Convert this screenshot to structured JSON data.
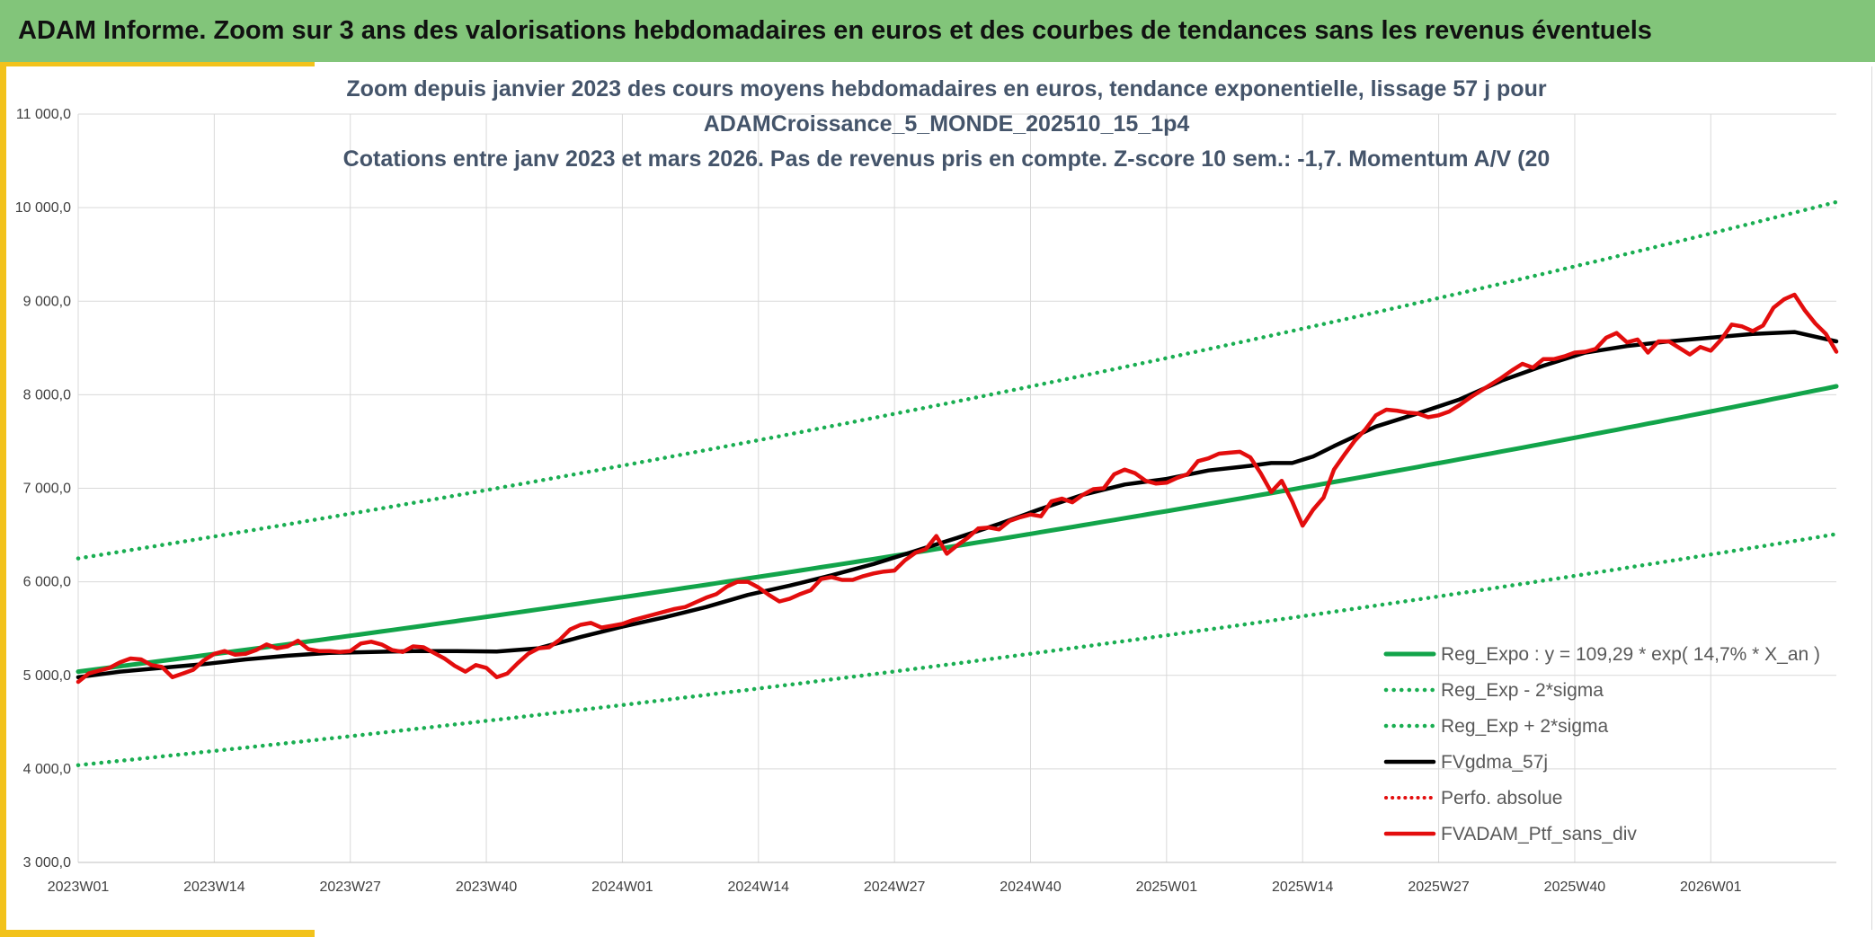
{
  "header": {
    "title": "ADAM Informe. Zoom sur 3 ans des valorisations hebdomadaires en euros et des courbes de tendances sans les revenus éventuels"
  },
  "colors": {
    "banner": "#82c57a",
    "accent_gold": "#f2c21b",
    "reg_expo": "#12a44a",
    "sigma_lines": "#1aae52",
    "fvgdma": "#000000",
    "perfo": "#e30d0d",
    "ptf": "#e30d0d",
    "grid": "#d9d9d9"
  },
  "chart_data": {
    "type": "line",
    "title_lines": [
      "Zoom depuis janvier 2023 des cours moyens hebdomadaires en euros, tendance exponentielle, lissage 57 j pour",
      "ADAMCroissance_5_MONDE_202510_15_1p4",
      "Cotations entre janv 2023 et mars 2026. Pas de revenus pris en compte. Z-score 10 sem.: -1,7. Momentum A/V (20"
    ],
    "x_tick_labels": [
      "2023W01",
      "2023W14",
      "2023W27",
      "2023W40",
      "2024W01",
      "2024W14",
      "2024W27",
      "2024W40",
      "2025W01",
      "2025W14",
      "2025W27",
      "2025W40",
      "2026W01"
    ],
    "x_tick_weeks": [
      0,
      13,
      26,
      39,
      52,
      65,
      78,
      91,
      104,
      117,
      130,
      143,
      156
    ],
    "y_tick_labels": [
      "3 000,0",
      "4 000,0",
      "5 000,0",
      "6 000,0",
      "7 000,0",
      "8 000,0",
      "9 000,0",
      "10 000,0",
      "11 000,0"
    ],
    "ylim": [
      3000,
      11000
    ],
    "x_week_range": [
      0,
      168
    ],
    "grid": true,
    "legend_position": "bottom-right",
    "series": [
      {
        "name": "Reg_Expo : y = 109,29 * exp( 14,7% *  X_an )",
        "style": "solid",
        "x": [
          0,
          168
        ],
        "values": [
          5040,
          8090
        ],
        "exponential": true
      },
      {
        "name": "Reg_Exp - 2*sigma",
        "style": "dotted",
        "x": [
          0,
          168
        ],
        "values": [
          4040,
          6510
        ],
        "exponential": true
      },
      {
        "name": "Reg_Exp + 2*sigma",
        "style": "dotted",
        "x": [
          0,
          168
        ],
        "values": [
          6250,
          10060
        ],
        "exponential": true
      },
      {
        "name": "FVgdma_57j",
        "style": "solid",
        "x": [
          0,
          4,
          8,
          12,
          16,
          20,
          24,
          28,
          32,
          36,
          40,
          44,
          48,
          52,
          56,
          60,
          64,
          68,
          72,
          76,
          80,
          84,
          88,
          92,
          96,
          100,
          104,
          108,
          112,
          114,
          116,
          118,
          120,
          124,
          128,
          132,
          136,
          140,
          144,
          148,
          152,
          156,
          160,
          164,
          168
        ],
        "values": [
          4980,
          5040,
          5080,
          5120,
          5170,
          5210,
          5240,
          5250,
          5260,
          5260,
          5255,
          5290,
          5410,
          5520,
          5620,
          5730,
          5860,
          5960,
          6070,
          6190,
          6330,
          6470,
          6620,
          6780,
          6930,
          7040,
          7100,
          7190,
          7240,
          7270,
          7270,
          7340,
          7450,
          7660,
          7800,
          7950,
          8150,
          8310,
          8450,
          8520,
          8570,
          8610,
          8650,
          8670,
          8570
        ]
      },
      {
        "name": "Perfo. absolue",
        "style": "dotted",
        "x": [],
        "values": []
      },
      {
        "name": "FVADAM_Ptf_sans_div",
        "style": "solid",
        "x": [
          0,
          1,
          2,
          3,
          4,
          5,
          6,
          7,
          8,
          9,
          10,
          11,
          12,
          13,
          14,
          15,
          16,
          17,
          18,
          19,
          20,
          21,
          22,
          23,
          24,
          25,
          26,
          27,
          28,
          29,
          30,
          31,
          32,
          33,
          34,
          35,
          36,
          37,
          38,
          39,
          40,
          41,
          42,
          43,
          44,
          45,
          46,
          47,
          48,
          49,
          50,
          51,
          52,
          53,
          54,
          55,
          56,
          57,
          58,
          59,
          60,
          61,
          62,
          63,
          64,
          65,
          66,
          67,
          68,
          69,
          70,
          71,
          72,
          73,
          74,
          75,
          76,
          77,
          78,
          79,
          80,
          81,
          82,
          83,
          84,
          85,
          86,
          87,
          88,
          89,
          90,
          91,
          92,
          93,
          94,
          95,
          96,
          97,
          98,
          99,
          100,
          101,
          102,
          103,
          104,
          105,
          106,
          107,
          108,
          109,
          110,
          111,
          112,
          113,
          114,
          115,
          116,
          117,
          118,
          119,
          120,
          121,
          122,
          123,
          124,
          125,
          126,
          127,
          128,
          129,
          130,
          131,
          132,
          133,
          134,
          135,
          136,
          137,
          138,
          139,
          140,
          141,
          142,
          143,
          144,
          145,
          146,
          147,
          148,
          149,
          150,
          151,
          152,
          153,
          154,
          155,
          156,
          157,
          158,
          159,
          160,
          161,
          162,
          163,
          164,
          165,
          166,
          167,
          168
        ],
        "values": [
          4930,
          5020,
          5050,
          5080,
          5140,
          5180,
          5170,
          5110,
          5090,
          4980,
          5020,
          5060,
          5160,
          5230,
          5260,
          5220,
          5230,
          5270,
          5330,
          5290,
          5310,
          5370,
          5280,
          5260,
          5260,
          5250,
          5260,
          5340,
          5360,
          5330,
          5270,
          5250,
          5310,
          5300,
          5240,
          5180,
          5100,
          5040,
          5110,
          5080,
          4980,
          5020,
          5130,
          5230,
          5290,
          5300,
          5380,
          5490,
          5540,
          5560,
          5510,
          5530,
          5550,
          5590,
          5620,
          5650,
          5680,
          5710,
          5730,
          5780,
          5830,
          5870,
          5950,
          6000,
          6000,
          5940,
          5860,
          5790,
          5820,
          5870,
          5910,
          6030,
          6050,
          6020,
          6020,
          6060,
          6090,
          6110,
          6120,
          6230,
          6310,
          6350,
          6490,
          6300,
          6390,
          6470,
          6570,
          6580,
          6560,
          6650,
          6690,
          6720,
          6700,
          6860,
          6890,
          6850,
          6930,
          6990,
          7000,
          7150,
          7200,
          7160,
          7080,
          7050,
          7060,
          7110,
          7150,
          7290,
          7320,
          7370,
          7380,
          7390,
          7330,
          7160,
          6960,
          7080,
          6860,
          6600,
          6770,
          6900,
          7200,
          7360,
          7510,
          7630,
          7780,
          7840,
          7830,
          7810,
          7800,
          7760,
          7780,
          7820,
          7890,
          7970,
          8040,
          8110,
          8180,
          8260,
          8330,
          8290,
          8380,
          8380,
          8410,
          8450,
          8460,
          8490,
          8610,
          8660,
          8560,
          8590,
          8450,
          8570,
          8570,
          8500,
          8430,
          8510,
          8470,
          8590,
          8750,
          8730,
          8680,
          8740,
          8930,
          9020,
          9070,
          8900,
          8760,
          8650,
          8460
        ]
      }
    ]
  }
}
